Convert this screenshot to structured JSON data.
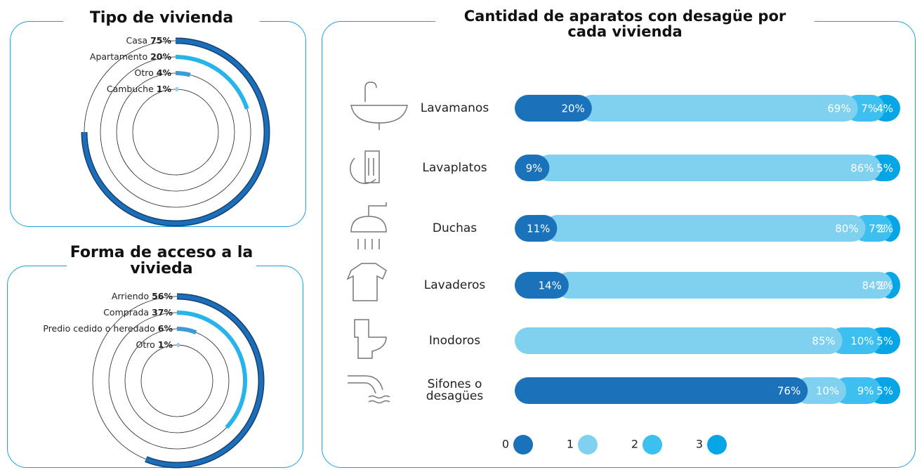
{
  "chart_data": [
    {
      "type": "radial_bar",
      "title": "Tipo de vivienda",
      "categories": [
        "Casa",
        "Apartamento",
        "Otro",
        "Cambuche"
      ],
      "values": [
        75,
        20,
        4,
        1
      ],
      "value_labels": [
        "75%",
        "20%",
        "4%",
        "1%"
      ],
      "colors": [
        "#1a6fb8",
        "#27b4ea",
        "#3a9bd6",
        "#8fd4f1"
      ]
    },
    {
      "type": "radial_bar",
      "title": "Forma de acceso a la vivieda",
      "categories": [
        "Arriendo",
        "Comprada",
        "Predio cedido o heredado",
        "Otro"
      ],
      "values": [
        56,
        37,
        6,
        1
      ],
      "value_labels": [
        "56%",
        "37%",
        "6%",
        "1%"
      ],
      "colors": [
        "#1a6fb8",
        "#27b4ea",
        "#3a9bd6",
        "#8fd4f1"
      ]
    },
    {
      "type": "bar",
      "orientation": "horizontal",
      "stacked": true,
      "title": "Cantidad de aparatos con desagüe por cada vivienda",
      "categories": [
        "Lavamanos",
        "Lavaplatos",
        "Duchas",
        "Lavaderos",
        "Inodoros",
        "Sifones o desagües"
      ],
      "series": [
        {
          "name": "0",
          "color": "#1a72bb",
          "values": [
            20,
            9,
            11,
            14,
            null,
            76
          ],
          "value_labels": [
            "20%",
            "9%",
            "11%",
            "14%",
            null,
            "76%"
          ]
        },
        {
          "name": "1",
          "color": "#80d0f0",
          "values": [
            69,
            86,
            80,
            84,
            85,
            10
          ],
          "value_labels": [
            "69%",
            "86%",
            "80%",
            "84%",
            "85%",
            "10%"
          ]
        },
        {
          "name": "2",
          "color": "#3dbfef",
          "values": [
            7,
            null,
            7,
            null,
            10,
            9
          ],
          "value_labels": [
            "7%",
            null,
            "7%",
            null,
            "10%",
            "9%"
          ]
        },
        {
          "name": "3",
          "color": "#06a6e6",
          "values": [
            4,
            5,
            2,
            2,
            5,
            5
          ],
          "value_labels": [
            "4%",
            "5%",
            "2%",
            "2%",
            "5%",
            "5%"
          ]
        }
      ]
    }
  ]
}
